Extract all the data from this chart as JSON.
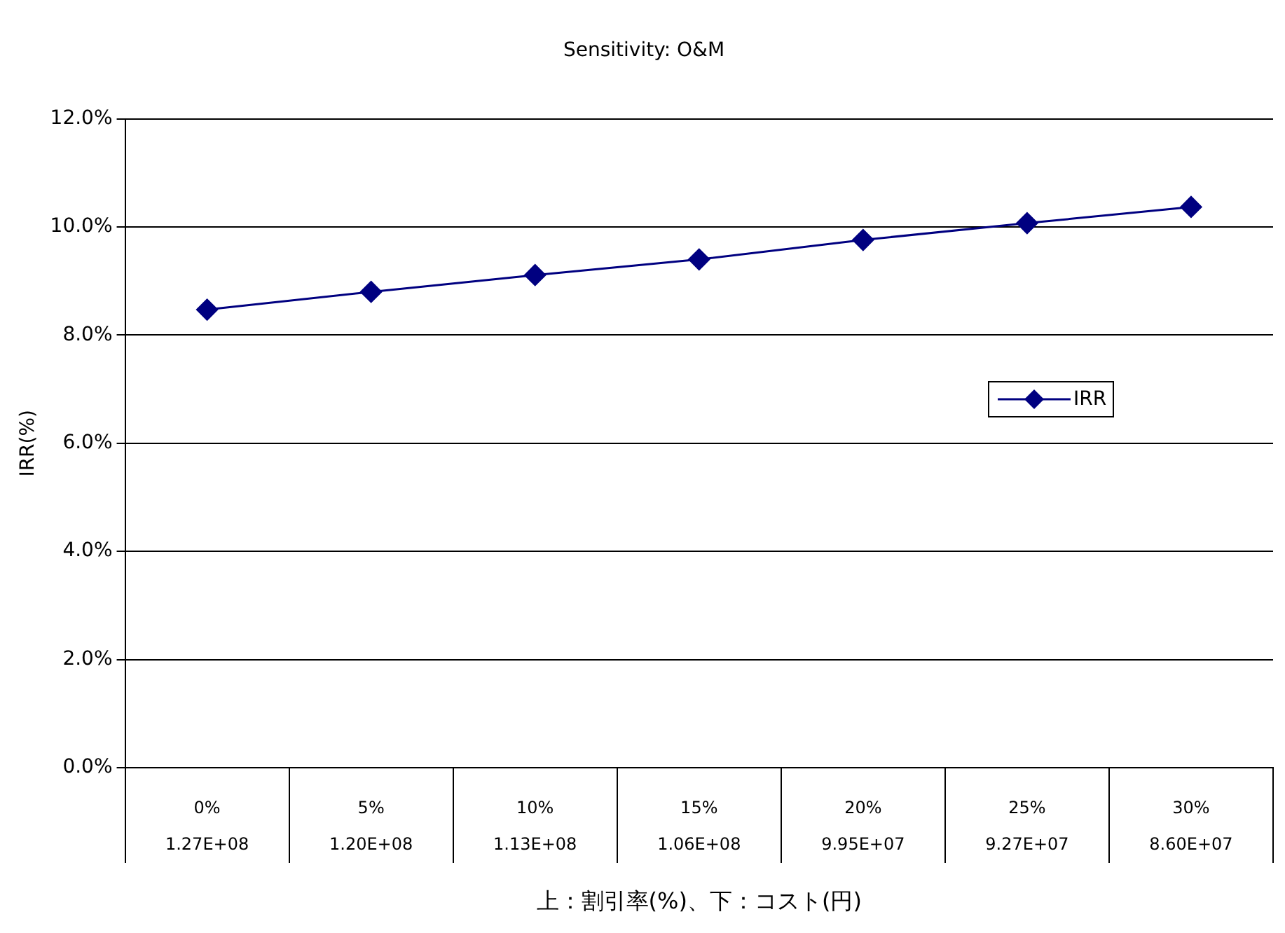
{
  "chart_data": {
    "type": "line",
    "title": "Sensitivity: O&M",
    "xlabel": "上：割引率(%)、下：コスト(円)",
    "ylabel": "IRR(%)",
    "categories": [
      "0%\n1.27E+08",
      "5%\n1.20E+08",
      "10%\n1.13E+08",
      "15%\n1.06E+08",
      "20%\n9.95E+07",
      "25%\n9.27E+07",
      "30%\n8.60E+07"
    ],
    "series": [
      {
        "name": "IRR",
        "color": "#000080",
        "values": [
          8.47,
          8.8,
          9.11,
          9.4,
          9.76,
          10.07,
          10.37
        ]
      }
    ],
    "ylim": [
      0,
      12
    ],
    "yticks": [
      {
        "value": 0,
        "label": "0.0%"
      },
      {
        "value": 2,
        "label": "2.0%"
      },
      {
        "value": 4,
        "label": "4.0%"
      },
      {
        "value": 6,
        "label": "6.0%"
      },
      {
        "value": 8,
        "label": "8.0%"
      },
      {
        "value": 10,
        "label": "10.0%"
      },
      {
        "value": 12,
        "label": "12.0%"
      }
    ],
    "grid": "y",
    "legend": "right",
    "marker": "diamond",
    "line_style": "solid"
  }
}
